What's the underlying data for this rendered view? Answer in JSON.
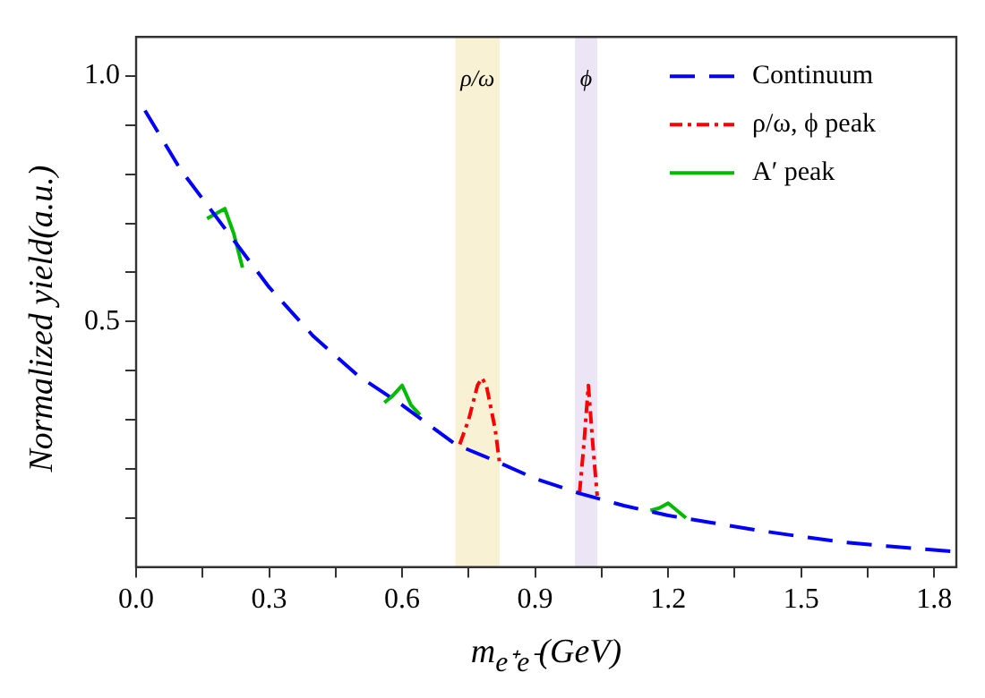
{
  "chart_data": {
    "type": "line",
    "xlabel": "m$_{e⁺e⁻}$(GeV)",
    "ylabel": "Normalized yield(a.u.)",
    "xlim": [
      0,
      1.85
    ],
    "ylim": [
      0,
      1.08
    ],
    "xticks": [
      {
        "value": 0,
        "label": "0.0"
      },
      {
        "value": 0.15,
        "label": null
      },
      0.3,
      {
        "value": 0.45,
        "label": null
      },
      0.6,
      {
        "value": 0.75,
        "label": null
      },
      0.9,
      {
        "value": 1.05,
        "label": null
      },
      1.2,
      {
        "value": 1.35,
        "label": null
      },
      1.5,
      {
        "value": 1.65,
        "label": null
      },
      1.8
    ],
    "yticks": [
      {
        "value": 0.1,
        "label": null
      },
      {
        "value": 0.2,
        "label": null
      },
      {
        "value": 0.3,
        "label": null
      },
      {
        "value": 0.4,
        "label": null
      },
      0.5,
      {
        "value": 0.6,
        "label": null
      },
      {
        "value": 0.7,
        "label": null
      },
      {
        "value": 0.8,
        "label": null
      },
      {
        "value": 0.9,
        "label": null
      },
      {
        "value": 1,
        "label": "1.0"
      }
    ],
    "series": [
      {
        "name": "Continuum",
        "color": "#0000ff",
        "line_style": "dashed",
        "x": [
          0.02,
          0.1,
          0.2,
          0.3,
          0.4,
          0.5,
          0.6,
          0.72,
          0.8,
          0.9,
          1.0,
          1.1,
          1.2,
          1.3,
          1.4,
          1.5,
          1.6,
          1.7,
          1.85
        ],
        "values": [
          0.93,
          0.81,
          0.69,
          0.57,
          0.47,
          0.39,
          0.33,
          0.25,
          0.22,
          0.18,
          0.15,
          0.125,
          0.105,
          0.09,
          0.075,
          0.062,
          0.05,
          0.042,
          0.031
        ]
      },
      {
        "name": "ρ/ω, ϕ peak",
        "color": "#ff0000",
        "line_style": "dotted",
        "x": [
          0.73,
          0.75,
          0.77,
          0.78,
          0.79,
          0.81,
          0.82,
          0.9,
          1.0,
          1.01,
          1.02,
          1.03,
          1.04
        ],
        "values": [
          0.25,
          0.3,
          0.37,
          0.385,
          0.37,
          0.28,
          0.21,
          null,
          0.15,
          0.25,
          0.37,
          0.25,
          0.145
        ]
      },
      {
        "name": "A′ peak",
        "color": "#00bb00",
        "line_style": "solid",
        "x": [
          0.16,
          0.18,
          0.2,
          0.22,
          0.24,
          0.4,
          0.56,
          0.58,
          0.6,
          0.62,
          0.64,
          0.9,
          1.16,
          1.18,
          1.2,
          1.22,
          1.24
        ],
        "values": [
          0.71,
          0.72,
          0.73,
          0.68,
          0.61,
          null,
          0.335,
          0.35,
          0.37,
          0.33,
          0.31,
          null,
          0.115,
          0.12,
          0.13,
          0.115,
          0.1
        ]
      }
    ],
    "bands": [
      {
        "axis": "x",
        "from": 0.72,
        "to": 0.82,
        "label": "ρ/ω",
        "color": "#f8f1d4"
      },
      {
        "axis": "x",
        "from": 0.99,
        "to": 1.04,
        "label": "ϕ",
        "color": "#ebe5f5"
      }
    ],
    "legend": "top right",
    "grid": false,
    "marker": "none"
  }
}
